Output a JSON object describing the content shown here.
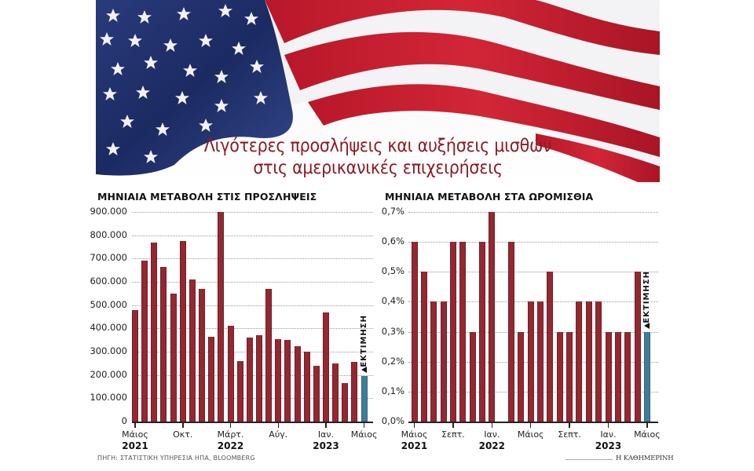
{
  "header": {
    "title_line1": "Λιγότερες προσλήψεις και αυξήσεις μισθών",
    "title_line2": "στις αμερικανικές επιχειρήσεις",
    "background_image": "us-flag-image"
  },
  "colors": {
    "bar_primary": "#922932",
    "bar_estimate": "#3e7d98",
    "title": "#8c1b25",
    "flag_blue": "#1f2f6e",
    "flag_red": "#c8202f"
  },
  "chart_data": [
    {
      "type": "bar",
      "title": "ΜΗΝΙΑΙΑ ΜΕΤΑΒΟΛΗ ΣΤΙΣ ΠΡΟΣΛΗΨΕΙΣ",
      "xlabel": "",
      "ylabel": "",
      "ylim": [
        0,
        900000
      ],
      "yticks": [
        "0",
        "100.000",
        "200.000",
        "300.000",
        "400.000",
        "500.000",
        "600.000",
        "700.000",
        "800.000",
        "900.000"
      ],
      "grid": true,
      "categories": [
        "05/2021",
        "06/2021",
        "07/2021",
        "08/2021",
        "09/2021",
        "10/2021",
        "11/2021",
        "12/2021",
        "01/2022",
        "02/2022",
        "03/2022",
        "04/2022",
        "05/2022",
        "06/2022",
        "07/2022",
        "08/2022",
        "09/2022",
        "10/2022",
        "11/2022",
        "12/2022",
        "01/2023",
        "02/2023",
        "03/2023",
        "04/2023",
        "05/2023"
      ],
      "values": [
        480000,
        690000,
        770000,
        665000,
        550000,
        775000,
        610000,
        570000,
        365000,
        900000,
        410000,
        260000,
        360000,
        370000,
        570000,
        355000,
        350000,
        325000,
        300000,
        240000,
        470000,
        250000,
        165000,
        255000,
        195000
      ],
      "estimate_index": 24,
      "estimate_label": "ΕΚΤΙΜΗΣΗ",
      "xtick_labels": [
        {
          "index": 0,
          "label": "Μάιος",
          "year": "2021"
        },
        {
          "index": 5,
          "label": "Οκτ.",
          "year": ""
        },
        {
          "index": 10,
          "label": "Μάρτ.",
          "year": "2022"
        },
        {
          "index": 15,
          "label": "Αύγ.",
          "year": ""
        },
        {
          "index": 20,
          "label": "Ιαν.",
          "year": "2023"
        },
        {
          "index": 24,
          "label": "Μάιος",
          "year": ""
        }
      ]
    },
    {
      "type": "bar",
      "title": "ΜΗΝΙΑΙΑ ΜΕΤΑΒΟΛΗ ΣΤΑ ΩΡΟΜΙΣΘΙΑ",
      "xlabel": "",
      "ylabel": "",
      "ylim": [
        0,
        0.7
      ],
      "yticks": [
        "0,0%",
        "0,1%",
        "0,2%",
        "0,3%",
        "0,4%",
        "0,5%",
        "0,6%",
        "0,7%"
      ],
      "grid": true,
      "categories": [
        "05/2021",
        "06/2021",
        "07/2021",
        "08/2021",
        "09/2021",
        "10/2021",
        "11/2021",
        "12/2021",
        "01/2022",
        "02/2022",
        "03/2022",
        "04/2022",
        "05/2022",
        "06/2022",
        "07/2022",
        "08/2022",
        "09/2022",
        "10/2022",
        "11/2022",
        "12/2022",
        "01/2023",
        "02/2023",
        "03/2023",
        "04/2023",
        "05/2023"
      ],
      "values": [
        0.6,
        0.5,
        0.4,
        0.4,
        0.6,
        0.6,
        0.3,
        0.6,
        0.7,
        0.0,
        0.6,
        0.3,
        0.4,
        0.4,
        0.5,
        0.3,
        0.3,
        0.4,
        0.4,
        0.4,
        0.3,
        0.3,
        0.3,
        0.5,
        0.3
      ],
      "estimate_index": 24,
      "estimate_label": "ΕΚΤΙΜΗΣΗ",
      "xtick_labels": [
        {
          "index": 0,
          "label": "Μάιος",
          "year": "2021"
        },
        {
          "index": 4,
          "label": "Σεπτ.",
          "year": ""
        },
        {
          "index": 8,
          "label": "Ιαν.",
          "year": "2022"
        },
        {
          "index": 12,
          "label": "Μάιος",
          "year": ""
        },
        {
          "index": 16,
          "label": "Σεπτ.",
          "year": ""
        },
        {
          "index": 20,
          "label": "Ιαν.",
          "year": "2023"
        },
        {
          "index": 24,
          "label": "Μάιος",
          "year": ""
        }
      ]
    }
  ],
  "footer": {
    "source": "ΠΗΓΗ: ΣΤΑΤΙΣΤΙΚΗ ΥΠΗΡΕΣΙΑ ΗΠΑ, BLOOMBERG",
    "credit": "Η ΚΑΘΗΜΕΡΙΝΗ"
  }
}
